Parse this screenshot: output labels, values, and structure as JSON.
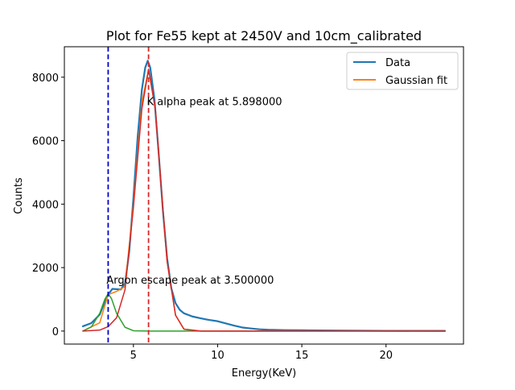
{
  "chart_data": {
    "type": "line",
    "title": "Plot for Fe55 kept at 2450V and 10cm_calibrated",
    "xlabel": "Energy(KeV)",
    "ylabel": "Counts",
    "xlim": [
      0.9,
      24.6
    ],
    "ylim": [
      -410,
      8960
    ],
    "xticks": [
      5,
      10,
      15,
      20
    ],
    "yticks": [
      0,
      2000,
      4000,
      6000,
      8000
    ],
    "grid": false,
    "legend_position": "top-right",
    "series": [
      {
        "name": "Data",
        "color": "#1f77b4",
        "points": [
          [
            2.0,
            150
          ],
          [
            2.5,
            250
          ],
          [
            3.0,
            520
          ],
          [
            3.25,
            850
          ],
          [
            3.5,
            1150
          ],
          [
            3.75,
            1330
          ],
          [
            4.0,
            1320
          ],
          [
            4.25,
            1310
          ],
          [
            4.5,
            1500
          ],
          [
            4.75,
            2500
          ],
          [
            5.0,
            4200
          ],
          [
            5.25,
            6100
          ],
          [
            5.5,
            7600
          ],
          [
            5.7,
            8300
          ],
          [
            5.85,
            8520
          ],
          [
            6.0,
            8300
          ],
          [
            6.25,
            7300
          ],
          [
            6.5,
            5600
          ],
          [
            6.75,
            3800
          ],
          [
            7.0,
            2300
          ],
          [
            7.25,
            1350
          ],
          [
            7.5,
            880
          ],
          [
            7.75,
            670
          ],
          [
            8.0,
            560
          ],
          [
            8.5,
            460
          ],
          [
            9.0,
            400
          ],
          [
            9.5,
            350
          ],
          [
            10.0,
            310
          ],
          [
            10.5,
            240
          ],
          [
            11.0,
            170
          ],
          [
            11.5,
            110
          ],
          [
            12.0,
            80
          ],
          [
            12.5,
            55
          ],
          [
            13.0,
            40
          ],
          [
            14.0,
            30
          ],
          [
            15.0,
            25
          ],
          [
            17.0,
            15
          ],
          [
            20.0,
            8
          ],
          [
            23.5,
            5
          ]
        ]
      },
      {
        "name": "Gaussian fit",
        "color": "#ff7f0e",
        "points": [
          [
            2.0,
            0
          ],
          [
            3.0,
            260
          ],
          [
            3.5,
            1150
          ],
          [
            4.0,
            1250
          ],
          [
            4.5,
            1400
          ],
          [
            5.0,
            4000
          ],
          [
            5.5,
            7200
          ],
          [
            5.9,
            8250
          ],
          [
            6.3,
            7000
          ],
          [
            6.7,
            4200
          ],
          [
            7.0,
            2200
          ],
          [
            7.5,
            500
          ],
          [
            8.0,
            60
          ],
          [
            9.0,
            0
          ],
          [
            23.5,
            0
          ]
        ]
      },
      {
        "name": "",
        "color": "#2ca02c",
        "points": [
          [
            2.0,
            0
          ],
          [
            2.5,
            130
          ],
          [
            3.0,
            560
          ],
          [
            3.3,
            1000
          ],
          [
            3.5,
            1180
          ],
          [
            3.7,
            1020
          ],
          [
            4.0,
            560
          ],
          [
            4.5,
            120
          ],
          [
            5.0,
            10
          ],
          [
            6.0,
            0
          ],
          [
            23.5,
            0
          ]
        ]
      },
      {
        "name": "",
        "color": "#d62728",
        "points": [
          [
            2.0,
            0
          ],
          [
            3.0,
            30
          ],
          [
            3.5,
            140
          ],
          [
            4.0,
            420
          ],
          [
            4.5,
            1300
          ],
          [
            5.0,
            3900
          ],
          [
            5.5,
            7000
          ],
          [
            5.9,
            8250
          ],
          [
            6.3,
            7000
          ],
          [
            6.7,
            4200
          ],
          [
            7.0,
            2200
          ],
          [
            7.5,
            500
          ],
          [
            8.0,
            60
          ],
          [
            9.0,
            0
          ],
          [
            23.5,
            0
          ]
        ]
      }
    ],
    "vlines": [
      {
        "x": 3.5,
        "color": "#0000cc",
        "style": "dashed"
      },
      {
        "x": 5.898,
        "color": "#d62728",
        "style": "dashed"
      }
    ],
    "annotations": [
      {
        "text": "K alpha peak at 5.898000",
        "x": 5.898,
        "y": 7250
      },
      {
        "text": "Argon escape peak at 3.500000",
        "x": 3.5,
        "y": 1620
      }
    ]
  }
}
